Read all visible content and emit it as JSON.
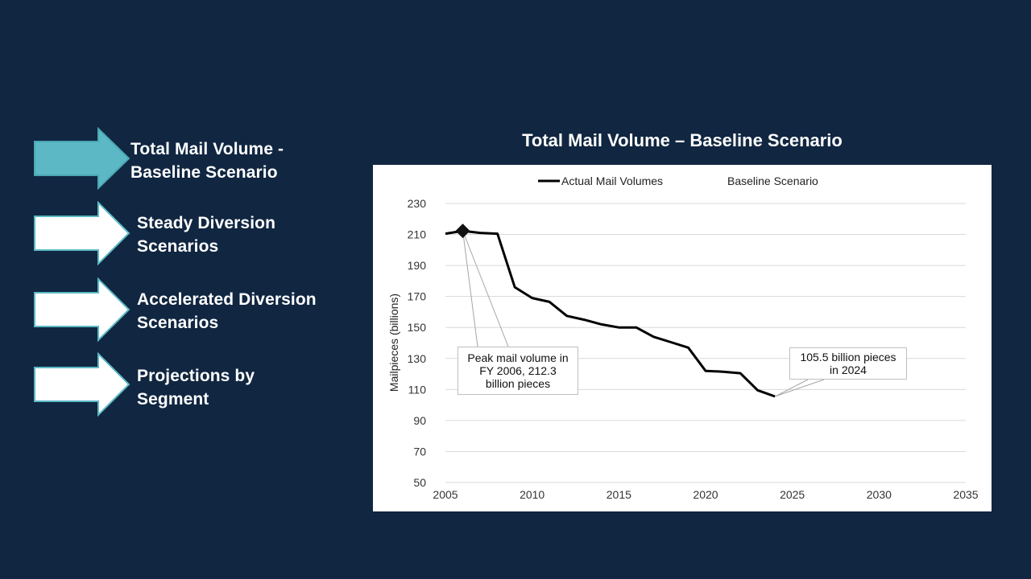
{
  "nav": {
    "items": [
      {
        "label_line1": "Total Mail Volume -",
        "label_line2": "Baseline Scenario",
        "active": true
      },
      {
        "label_line1": "Steady Diversion",
        "label_line2": "Scenarios",
        "active": false
      },
      {
        "label_line1": "Accelerated Diversion",
        "label_line2": "Scenarios",
        "active": false
      },
      {
        "label_line1": "Projections by",
        "label_line2": "Segment",
        "active": false
      }
    ]
  },
  "colors": {
    "background": "#102641",
    "active_arrow": "#5bb8c4",
    "inactive_arrow": "#ffffff",
    "arrow_border": "#5bb8c4",
    "series_line": "#000000"
  },
  "chart_data": {
    "type": "line",
    "title": "Total Mail Volume – Baseline Scenario",
    "ylabel": "Mailpieces (billions)",
    "xlabel": "",
    "xlim": [
      2005,
      2035
    ],
    "ylim": [
      50,
      230
    ],
    "x_ticks": [
      2005,
      2010,
      2015,
      2020,
      2025,
      2030,
      2035
    ],
    "y_ticks": [
      50,
      70,
      90,
      110,
      130,
      150,
      170,
      190,
      210,
      230
    ],
    "grid": "horizontal",
    "legend": {
      "placement": "top",
      "entries": [
        {
          "name": "Actual Mail Volumes",
          "style": "line"
        },
        {
          "name": "Baseline Scenario",
          "style": "none"
        }
      ]
    },
    "series": [
      {
        "name": "Actual Mail Volumes",
        "x": [
          2005,
          2006,
          2007,
          2008,
          2009,
          2010,
          2011,
          2012,
          2013,
          2014,
          2015,
          2016,
          2017,
          2018,
          2019,
          2020,
          2021,
          2022,
          2023,
          2024
        ],
        "y": [
          210.5,
          212.3,
          211.0,
          210.5,
          176.0,
          169.0,
          166.5,
          157.5,
          155.0,
          152.0,
          150.0,
          150.0,
          144.0,
          140.5,
          137.0,
          122.0,
          121.5,
          120.5,
          109.5,
          105.5
        ]
      }
    ],
    "markers": [
      {
        "x": 2006,
        "y": 212.3,
        "shape": "diamond"
      }
    ],
    "annotations": [
      {
        "line1": "Peak mail volume in",
        "line2": "FY 2006, 212.3",
        "line3": "billion pieces",
        "target_x": 2006,
        "target_y": 212.3
      },
      {
        "line1": "105.5 billion pieces",
        "line2": "in 2024",
        "target_x": 2024,
        "target_y": 105.5
      }
    ]
  }
}
